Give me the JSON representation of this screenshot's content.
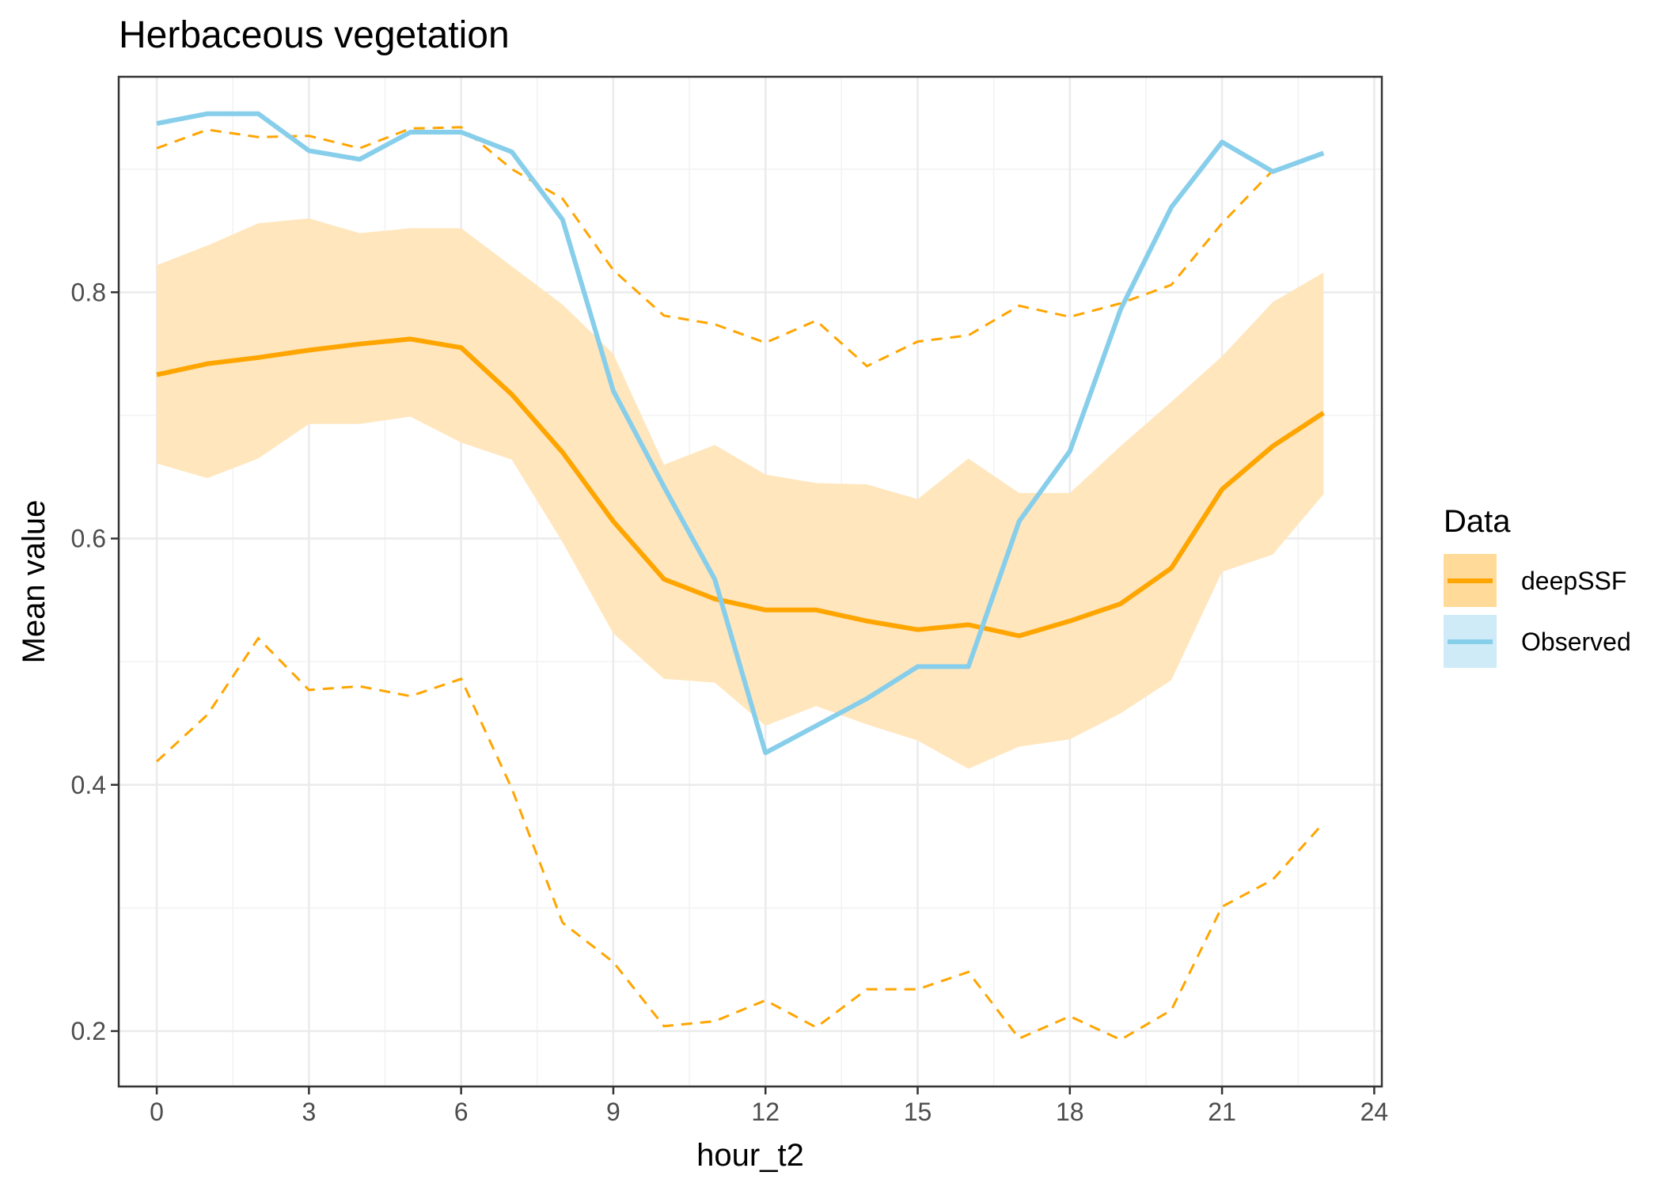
{
  "chart_data": {
    "type": "line",
    "title": "Herbaceous vegetation",
    "xlabel": "hour_t2",
    "ylabel": "Mean value",
    "xlim": [
      -0.75,
      24.15
    ],
    "ylim": [
      0.155,
      0.975
    ],
    "x_ticks": [
      0,
      3,
      6,
      9,
      12,
      15,
      18,
      21,
      24
    ],
    "x_tick_labels": [
      "0",
      "3",
      "6",
      "9",
      "12",
      "15",
      "18",
      "21",
      "24"
    ],
    "y_ticks": [
      0.2,
      0.4,
      0.6,
      0.8
    ],
    "y_tick_labels": [
      "0.2",
      "0.4",
      "0.6",
      "0.8"
    ],
    "grid": true,
    "legend": {
      "title": "Data",
      "position": "right",
      "entries": [
        {
          "label": "deepSSF",
          "line_color": "#FFA500",
          "fill_color": "#FFDA99"
        },
        {
          "label": "Observed",
          "line_color": "#87CEEB",
          "fill_color": "#CFEBF7"
        }
      ]
    },
    "x": [
      0,
      1,
      2,
      3,
      4,
      5,
      6,
      7,
      8,
      9,
      10,
      11,
      12,
      13,
      14,
      15,
      16,
      17,
      18,
      19,
      20,
      21,
      22,
      23
    ],
    "series": [
      {
        "name": "deepSSF",
        "kind": "line",
        "color": "#FFA500",
        "values": [
          0.733,
          0.742,
          0.747,
          0.753,
          0.758,
          0.762,
          0.755,
          0.717,
          0.67,
          0.614,
          0.567,
          0.551,
          0.542,
          0.542,
          0.533,
          0.526,
          0.53,
          0.521,
          0.533,
          0.547,
          0.576,
          0.64,
          0.675,
          0.702
        ]
      },
      {
        "name": "deepSSF",
        "kind": "ribbon",
        "color": "#FFE6BD",
        "lower": [
          0.661,
          0.649,
          0.665,
          0.693,
          0.693,
          0.699,
          0.678,
          0.664,
          0.597,
          0.523,
          0.486,
          0.483,
          0.448,
          0.464,
          0.449,
          0.436,
          0.413,
          0.431,
          0.437,
          0.458,
          0.485,
          0.573,
          0.587,
          0.636
        ],
        "upper": [
          0.822,
          0.838,
          0.856,
          0.86,
          0.848,
          0.852,
          0.852,
          0.821,
          0.79,
          0.75,
          0.66,
          0.676,
          0.652,
          0.645,
          0.644,
          0.632,
          0.665,
          0.637,
          0.637,
          0.675,
          0.711,
          0.748,
          0.792,
          0.816
        ]
      },
      {
        "name": "deepSSF",
        "kind": "dashed-upper",
        "color": "#FFA500",
        "values": [
          0.917,
          0.932,
          0.926,
          0.927,
          0.917,
          0.933,
          0.934,
          0.9,
          0.876,
          0.818,
          0.781,
          0.774,
          0.759,
          0.777,
          0.74,
          0.76,
          0.765,
          0.789,
          0.78,
          0.791,
          0.806,
          0.856,
          0.899,
          0.912
        ]
      },
      {
        "name": "deepSSF",
        "kind": "dashed-lower",
        "color": "#FFA500",
        "values": [
          0.419,
          0.457,
          0.519,
          0.477,
          0.48,
          0.472,
          0.486,
          0.397,
          0.288,
          0.256,
          0.204,
          0.208,
          0.225,
          0.203,
          0.234,
          0.234,
          0.248,
          0.194,
          0.212,
          0.193,
          0.217,
          0.301,
          0.323,
          0.369
        ]
      },
      {
        "name": "Observed",
        "kind": "line",
        "color": "#87CEEB",
        "values": [
          0.937,
          0.945,
          0.945,
          0.915,
          0.908,
          0.93,
          0.93,
          0.914,
          0.859,
          0.72,
          0.642,
          0.567,
          0.426,
          0.448,
          0.47,
          0.496,
          0.496,
          0.614,
          0.671,
          0.786,
          0.869,
          0.922,
          0.898,
          0.913
        ]
      }
    ]
  }
}
